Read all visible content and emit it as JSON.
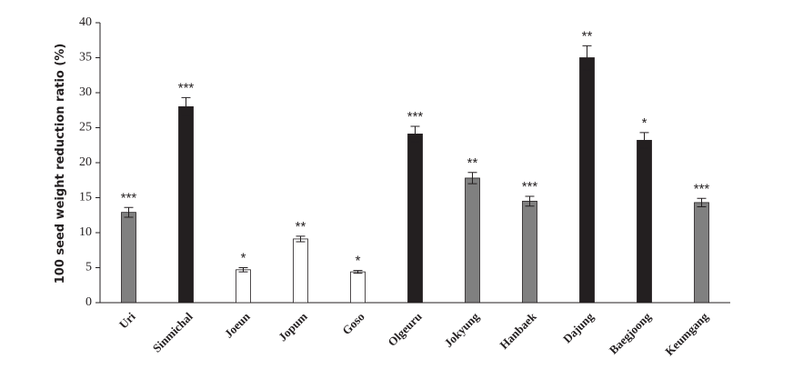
{
  "chart_data": {
    "type": "bar",
    "y_label": "100 seed weight reduction ratio (%)",
    "categories": [
      "Uri",
      "Sinmichal",
      "Joeun",
      "Jopum",
      "Goso",
      "Olgeuru",
      "Jokyung",
      "Hanbaek",
      "Dajung",
      "Baegjoong",
      "Keumgang"
    ],
    "values": [
      12.9,
      28.0,
      4.7,
      9.1,
      4.4,
      24.1,
      17.8,
      14.5,
      35.0,
      23.2,
      14.3
    ],
    "errors": [
      0.7,
      1.3,
      0.3,
      0.4,
      0.2,
      1.1,
      0.8,
      0.7,
      1.7,
      1.1,
      0.6
    ],
    "colors": [
      "#808080",
      "#231f20",
      "#ffffff",
      "#ffffff",
      "#ffffff",
      "#231f20",
      "#808080",
      "#808080",
      "#231f20",
      "#231f20",
      "#808080"
    ],
    "annotations": [
      "***",
      "***",
      "*",
      "**",
      "*",
      "***",
      "**",
      "***",
      "**",
      "*",
      "***"
    ],
    "ylim": [
      0,
      40
    ],
    "yticks": [
      0,
      5,
      10,
      15,
      20,
      25,
      30,
      35,
      40
    ]
  }
}
